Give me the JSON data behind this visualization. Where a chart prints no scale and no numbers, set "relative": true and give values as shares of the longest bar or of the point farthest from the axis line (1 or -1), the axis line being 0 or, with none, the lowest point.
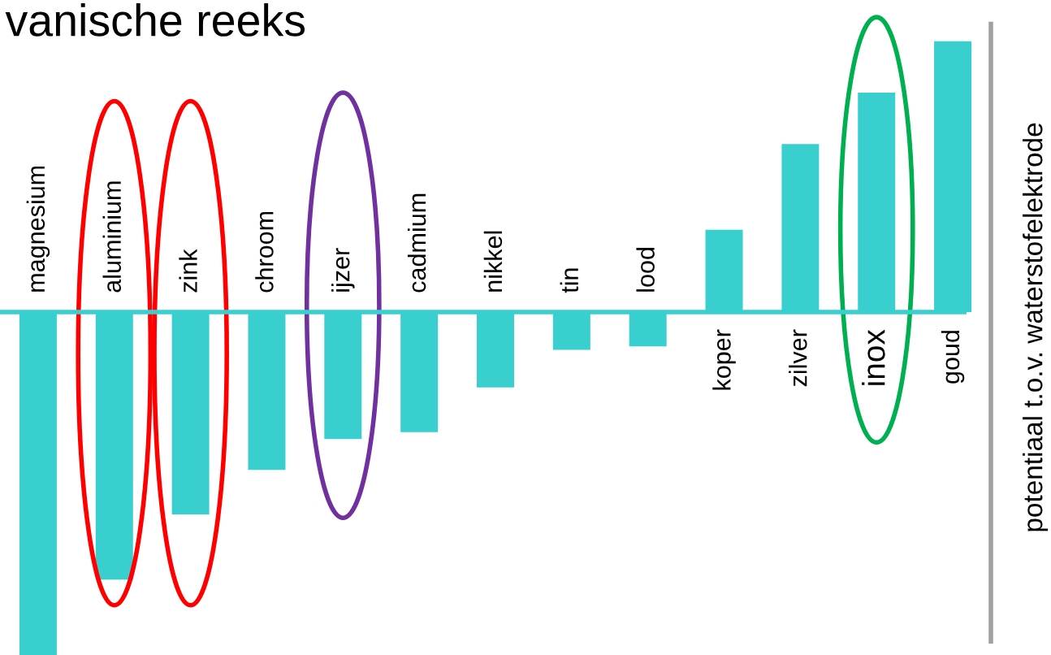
{
  "chart_data": {
    "type": "bar",
    "title": "vanische reeks",
    "ylabel": "potentiaal t.o.v. waterstofelektrode",
    "relative": true,
    "color": "#3acfcf",
    "categories": [
      "magnesium",
      "aluminium",
      "zink",
      "chroom",
      "ijzer",
      "cadmium",
      "nikkel",
      "tin",
      "lood",
      "koper",
      "zilver",
      "inox",
      "goud"
    ],
    "values": [
      -1,
      -0.78,
      -0.59,
      -0.46,
      -0.37,
      -0.35,
      -0.22,
      -0.11,
      -0.1,
      0.24,
      0.49,
      0.64,
      0.79
    ]
  }
}
